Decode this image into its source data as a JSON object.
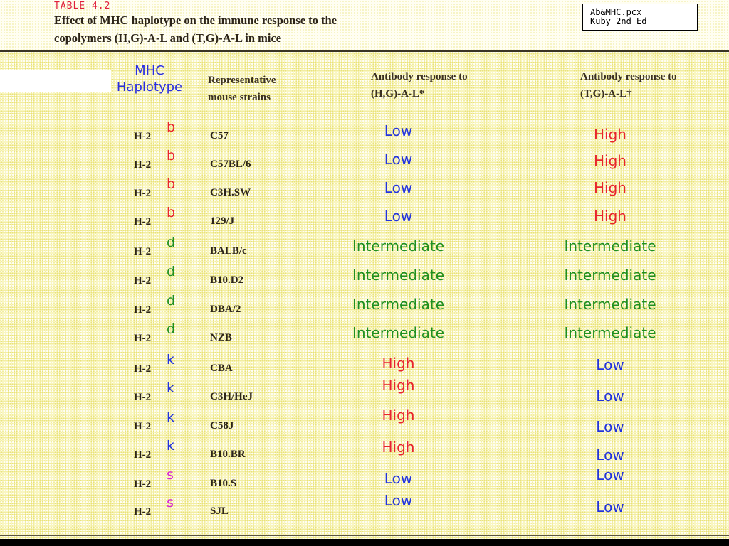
{
  "table_label": "TABLE 4.2",
  "caption_line1": "Effect of MHC haplotype on the immune response to the",
  "caption_line2": "copolymers (H,G)-A-L and (T,G)-A-L in mice",
  "source_line1": "Ab&MHC.pcx",
  "source_line2": "Kuby 2nd Ed",
  "headers": {
    "mhc_line1": "MHC",
    "mhc_line2": "Haplotype",
    "strains_line1": "Representative",
    "strains_line2": "mouse strains",
    "hg_line1": "Antibody response to",
    "hg_line2": "(H,G)-A-L*",
    "tg_line1": "Antibody response to",
    "tg_line2": "(T,G)-A-L†"
  },
  "h2_prefix": "H-2",
  "colors": {
    "low": "#2233dd",
    "high": "#e8242c",
    "intermediate": "#1f8f1f",
    "hap_b": "#e8242c",
    "hap_d": "#1f8f1f",
    "hap_k": "#2233dd",
    "hap_s": "#d81fd8"
  },
  "rows": [
    {
      "haplotype": "b",
      "strain": "C57",
      "hg": "Low",
      "tg": "High"
    },
    {
      "haplotype": "b",
      "strain": "C57BL/6",
      "hg": "Low",
      "tg": "High"
    },
    {
      "haplotype": "b",
      "strain": "C3H.SW",
      "hg": "Low",
      "tg": "High"
    },
    {
      "haplotype": "b",
      "strain": "129/J",
      "hg": "Low",
      "tg": "High"
    },
    {
      "haplotype": "d",
      "strain": "BALB/c",
      "hg": "Intermediate",
      "tg": "Intermediate"
    },
    {
      "haplotype": "d",
      "strain": "B10.D2",
      "hg": "Intermediate",
      "tg": "Intermediate"
    },
    {
      "haplotype": "d",
      "strain": "DBA/2",
      "hg": "Intermediate",
      "tg": "Intermediate"
    },
    {
      "haplotype": "d",
      "strain": "NZB",
      "hg": "Intermediate",
      "tg": "Intermediate"
    },
    {
      "haplotype": "k",
      "strain": "CBA",
      "hg": "High",
      "tg": "Low"
    },
    {
      "haplotype": "k",
      "strain": "C3H/HeJ",
      "hg": "High",
      "tg": "Low"
    },
    {
      "haplotype": "k",
      "strain": "C58J",
      "hg": "High",
      "tg": "Low"
    },
    {
      "haplotype": "k",
      "strain": "B10.BR",
      "hg": "High",
      "tg": "Low"
    },
    {
      "haplotype": "s",
      "strain": "B10.S",
      "hg": "Low",
      "tg": "Low"
    },
    {
      "haplotype": "s",
      "strain": "SJL",
      "hg": "Low",
      "tg": "Low"
    }
  ]
}
